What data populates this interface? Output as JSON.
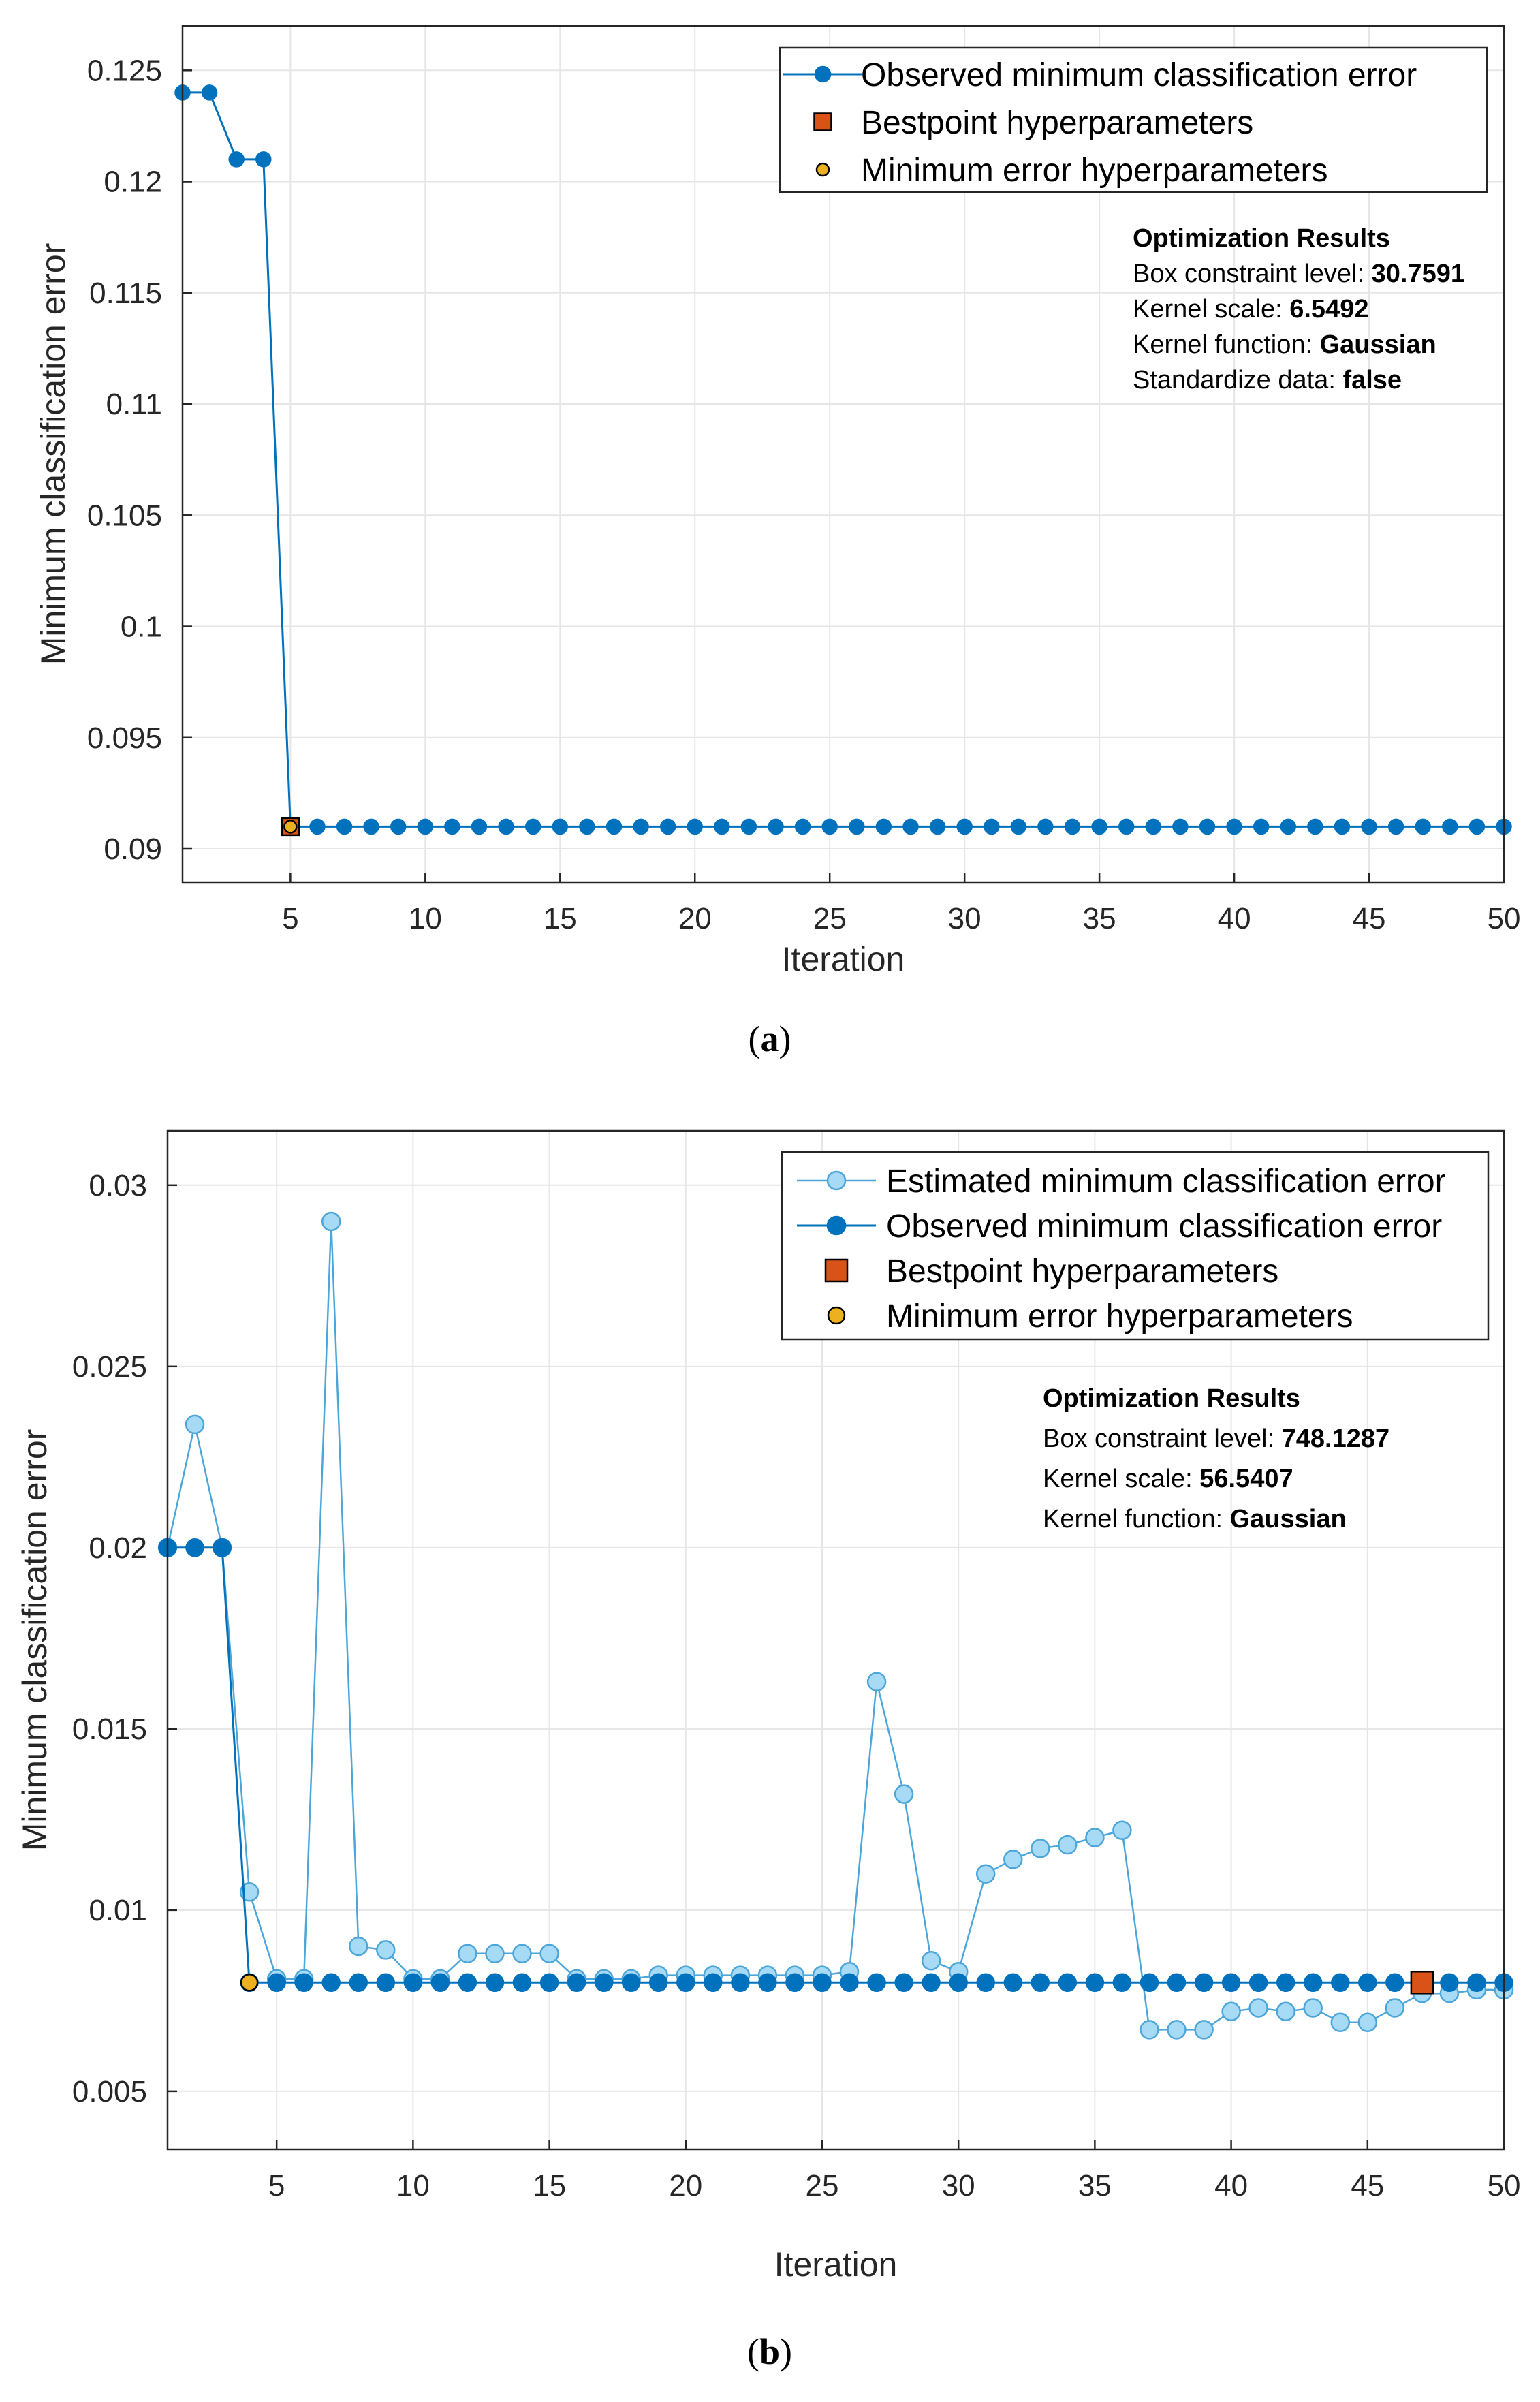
{
  "colors": {
    "observed": "#0072BD",
    "estimated_fill": "#A7DAF5",
    "estimated_line": "#4DA6D9",
    "bestpoint": "#D95319",
    "min_error": "#EDB120",
    "grid": "#E6E6E6",
    "axis": "#262626"
  },
  "chart_data": [
    {
      "type": "line",
      "caption_letter": "a",
      "xlabel": "Iteration",
      "ylabel": "Minimum classification error",
      "xlim": [
        1,
        50
      ],
      "ylim": [
        0.0885,
        0.127
      ],
      "xticks": [
        5,
        10,
        15,
        20,
        25,
        30,
        35,
        40,
        45,
        50
      ],
      "xtick_labels": [
        "5",
        "10",
        "15",
        "20",
        "25",
        "30",
        "35",
        "40",
        "45",
        "50"
      ],
      "yticks": [
        0.09,
        0.095,
        0.1,
        0.105,
        0.11,
        0.115,
        0.12,
        0.125
      ],
      "ytick_labels": [
        "0.09",
        "0.095",
        "0.1",
        "0.105",
        "0.11",
        "0.115",
        "0.12",
        "0.125"
      ],
      "legend": {
        "entries": [
          {
            "key": "observed",
            "label": "Observed minimum classification error"
          },
          {
            "key": "bestpoint",
            "label": "Bestpoint hyperparameters"
          },
          {
            "key": "min_error",
            "label": "Minimum error hyperparameters"
          }
        ]
      },
      "results": {
        "title": "Optimization Results",
        "items": [
          {
            "label": "Box constraint level: ",
            "value": "30.7591"
          },
          {
            "label": "Kernel scale: ",
            "value": "6.5492"
          },
          {
            "label": "Kernel function: ",
            "value": "Gaussian"
          },
          {
            "label": "Standardize data: ",
            "value": "false"
          }
        ]
      },
      "series": [
        {
          "name": "Observed minimum classification error",
          "key": "observed",
          "x": [
            1,
            2,
            3,
            4,
            5,
            6,
            7,
            8,
            9,
            10,
            11,
            12,
            13,
            14,
            15,
            16,
            17,
            18,
            19,
            20,
            21,
            22,
            23,
            24,
            25,
            26,
            27,
            28,
            29,
            30,
            31,
            32,
            33,
            34,
            35,
            36,
            37,
            38,
            39,
            40,
            41,
            42,
            43,
            44,
            45,
            46,
            47,
            48,
            49,
            50
          ],
          "values": [
            0.124,
            0.124,
            0.121,
            0.121,
            0.091,
            0.091,
            0.091,
            0.091,
            0.091,
            0.091,
            0.091,
            0.091,
            0.091,
            0.091,
            0.091,
            0.091,
            0.091,
            0.091,
            0.091,
            0.091,
            0.091,
            0.091,
            0.091,
            0.091,
            0.091,
            0.091,
            0.091,
            0.091,
            0.091,
            0.091,
            0.091,
            0.091,
            0.091,
            0.091,
            0.091,
            0.091,
            0.091,
            0.091,
            0.091,
            0.091,
            0.091,
            0.091,
            0.091,
            0.091,
            0.091,
            0.091,
            0.091,
            0.091,
            0.091,
            0.091
          ]
        }
      ],
      "bestpoint": {
        "x": 5,
        "y": 0.091
      },
      "min_error_point": {
        "x": 5,
        "y": 0.091
      }
    },
    {
      "type": "line",
      "caption_letter": "b",
      "xlabel": "Iteration",
      "ylabel": "Minimum classification error",
      "xlim": [
        1,
        50
      ],
      "ylim": [
        0.0034,
        0.0315
      ],
      "xticks": [
        5,
        10,
        15,
        20,
        25,
        30,
        35,
        40,
        45,
        50
      ],
      "xtick_labels": [
        "5",
        "10",
        "15",
        "20",
        "25",
        "30",
        "35",
        "40",
        "45",
        "50"
      ],
      "yticks": [
        0.005,
        0.01,
        0.015,
        0.02,
        0.025,
        0.03
      ],
      "ytick_labels": [
        "0.005",
        "0.01",
        "0.015",
        "0.02",
        "0.025",
        "0.03"
      ],
      "legend": {
        "entries": [
          {
            "key": "estimated",
            "label": "Estimated minimum classification error"
          },
          {
            "key": "observed",
            "label": "Observed minimum classification error"
          },
          {
            "key": "bestpoint",
            "label": "Bestpoint hyperparameters"
          },
          {
            "key": "min_error",
            "label": "Minimum error hyperparameters"
          }
        ]
      },
      "results": {
        "title": "Optimization Results",
        "items": [
          {
            "label": "Box constraint level: ",
            "value": "748.1287"
          },
          {
            "label": "Kernel scale: ",
            "value": "56.5407"
          },
          {
            "label": "Kernel function: ",
            "value": "Gaussian"
          }
        ]
      },
      "series": [
        {
          "name": "Estimated minimum classification error",
          "key": "estimated",
          "x": [
            1,
            2,
            3,
            4,
            5,
            6,
            7,
            8,
            9,
            10,
            11,
            12,
            13,
            14,
            15,
            16,
            17,
            18,
            19,
            20,
            21,
            22,
            23,
            24,
            25,
            26,
            27,
            28,
            29,
            30,
            31,
            32,
            33,
            34,
            35,
            36,
            37,
            38,
            39,
            40,
            41,
            42,
            43,
            44,
            45,
            46,
            47,
            48,
            49,
            50
          ],
          "values": [
            0.02,
            0.0234,
            0.02,
            0.0105,
            0.0081,
            0.0081,
            0.029,
            0.009,
            0.0089,
            0.0081,
            0.0081,
            0.0088,
            0.0088,
            0.0088,
            0.0088,
            0.0081,
            0.0081,
            0.0081,
            0.0082,
            0.0082,
            0.0082,
            0.0082,
            0.0082,
            0.0082,
            0.0082,
            0.0083,
            0.0163,
            0.0132,
            0.0086,
            0.0083,
            0.011,
            0.0114,
            0.0117,
            0.0118,
            0.012,
            0.0122,
            0.0067,
            0.0067,
            0.0067,
            0.0072,
            0.0073,
            0.0072,
            0.0073,
            0.0069,
            0.0069,
            0.0073,
            0.0077,
            0.0077,
            0.0078,
            0.0078
          ]
        },
        {
          "name": "Observed minimum classification error",
          "key": "observed",
          "x": [
            1,
            2,
            3,
            4,
            5,
            6,
            7,
            8,
            9,
            10,
            11,
            12,
            13,
            14,
            15,
            16,
            17,
            18,
            19,
            20,
            21,
            22,
            23,
            24,
            25,
            26,
            27,
            28,
            29,
            30,
            31,
            32,
            33,
            34,
            35,
            36,
            37,
            38,
            39,
            40,
            41,
            42,
            43,
            44,
            45,
            46,
            47,
            48,
            49,
            50
          ],
          "values": [
            0.02,
            0.02,
            0.02,
            0.008,
            0.008,
            0.008,
            0.008,
            0.008,
            0.008,
            0.008,
            0.008,
            0.008,
            0.008,
            0.008,
            0.008,
            0.008,
            0.008,
            0.008,
            0.008,
            0.008,
            0.008,
            0.008,
            0.008,
            0.008,
            0.008,
            0.008,
            0.008,
            0.008,
            0.008,
            0.008,
            0.008,
            0.008,
            0.008,
            0.008,
            0.008,
            0.008,
            0.008,
            0.008,
            0.008,
            0.008,
            0.008,
            0.008,
            0.008,
            0.008,
            0.008,
            0.008,
            0.008,
            0.008,
            0.008,
            0.008
          ]
        }
      ],
      "bestpoint": {
        "x": 47,
        "y": 0.008
      },
      "min_error_point": {
        "x": 4,
        "y": 0.008
      }
    }
  ]
}
